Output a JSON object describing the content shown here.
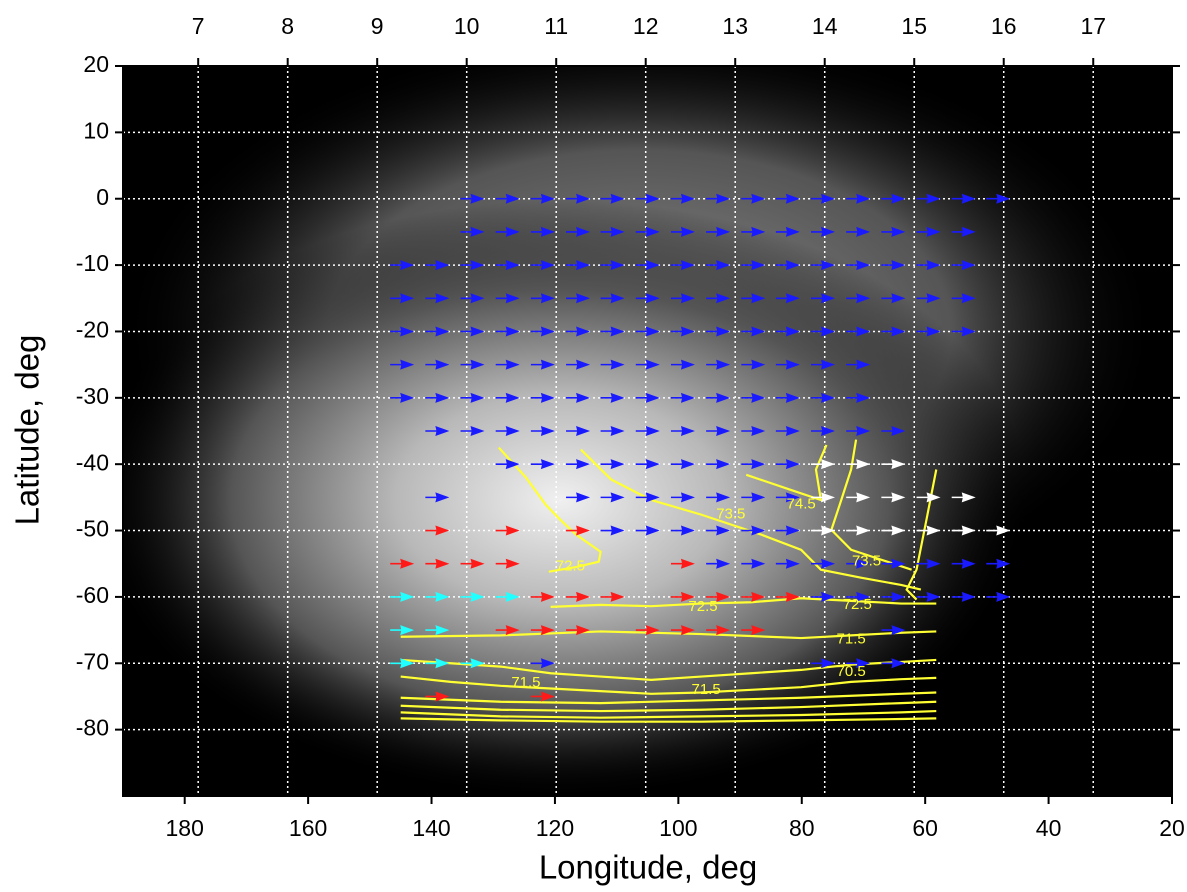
{
  "chart_data": {
    "type": "quiver",
    "xlabel": "Longitude, deg",
    "ylabel": "Latitude, deg",
    "xlim": [
      190,
      20
    ],
    "xticks": [
      180,
      160,
      140,
      120,
      100,
      80,
      60,
      40,
      20
    ],
    "x2lim": [
      6.16,
      17.88
    ],
    "x2ticks": [
      7,
      8,
      9,
      10,
      11,
      12,
      13,
      14,
      15,
      16,
      17
    ],
    "ylim": [
      -90,
      20
    ],
    "yticks": [
      20,
      10,
      0,
      -10,
      -20,
      -30,
      -40,
      -50,
      -60,
      -70,
      -80
    ],
    "grid": true,
    "series": [
      {
        "color": "#1a1aff",
        "x": [
          135.3,
          129.6,
          123.9,
          118.2,
          112.6,
          106.9,
          101.2,
          95.5,
          89.8,
          84.2,
          78.5,
          72.8,
          67.1,
          61.4,
          55.7,
          50.1,
          135.3,
          129.6,
          123.9,
          118.2,
          112.6,
          106.9,
          101.2,
          95.5,
          89.8,
          84.2,
          78.5,
          72.8,
          67.1,
          61.4,
          55.7,
          146.7,
          141,
          135.3,
          129.6,
          123.9,
          118.2,
          112.6,
          106.9,
          101.2,
          95.5,
          89.8,
          84.2,
          78.5,
          72.8,
          67.1,
          61.4,
          55.7,
          146.7,
          141,
          135.3,
          129.6,
          123.9,
          118.2,
          112.6,
          106.9,
          101.2,
          95.5,
          89.8,
          84.2,
          78.5,
          72.8,
          67.1,
          61.4,
          55.7,
          146.7,
          141,
          135.3,
          129.6,
          123.9,
          118.2,
          112.6,
          106.9,
          101.2,
          95.5,
          89.8,
          84.2,
          78.5,
          72.8,
          67.1,
          61.4,
          55.7,
          146.7,
          141,
          135.3,
          129.6,
          123.9,
          118.2,
          112.6,
          106.9,
          101.2,
          95.5,
          89.8,
          84.2,
          78.5,
          72.8,
          146.7,
          141,
          135.3,
          129.6,
          123.9,
          118.2,
          112.6,
          106.9,
          101.2,
          95.5,
          89.8,
          84.2,
          78.5,
          72.8,
          141,
          135.3,
          129.6,
          123.9,
          118.2,
          112.6,
          106.9,
          101.2,
          95.5,
          89.8,
          84.2,
          78.5,
          72.8,
          67.1,
          129.6,
          123.9,
          118.2,
          112.6,
          106.9,
          101.2,
          95.5,
          89.8,
          84.2,
          141,
          118.2,
          112.6,
          106.9,
          101.2,
          95.5,
          89.8,
          84.2,
          112.6,
          106.9,
          101.2,
          95.5,
          89.8,
          84.2,
          95.5,
          89.8,
          84.2,
          78.5,
          72.8,
          67.1,
          61.4,
          55.7,
          50.1,
          78.5,
          72.8,
          67.1,
          61.4,
          55.7,
          50.1,
          67.1,
          123.9,
          78.5,
          72.8,
          67.1
        ],
        "y": [
          0,
          0,
          0,
          0,
          0,
          0,
          0,
          0,
          0,
          0,
          0,
          0,
          0,
          0,
          0,
          0,
          -5,
          -5,
          -5,
          -5,
          -5,
          -5,
          -5,
          -5,
          -5,
          -5,
          -5,
          -5,
          -5,
          -5,
          -5,
          -10,
          -10,
          -10,
          -10,
          -10,
          -10,
          -10,
          -10,
          -10,
          -10,
          -10,
          -10,
          -10,
          -10,
          -10,
          -10,
          -10,
          -15,
          -15,
          -15,
          -15,
          -15,
          -15,
          -15,
          -15,
          -15,
          -15,
          -15,
          -15,
          -15,
          -15,
          -15,
          -15,
          -15,
          -20,
          -20,
          -20,
          -20,
          -20,
          -20,
          -20,
          -20,
          -20,
          -20,
          -20,
          -20,
          -20,
          -20,
          -20,
          -20,
          -20,
          -25,
          -25,
          -25,
          -25,
          -25,
          -25,
          -25,
          -25,
          -25,
          -25,
          -25,
          -25,
          -25,
          -25,
          -30,
          -30,
          -30,
          -30,
          -30,
          -30,
          -30,
          -30,
          -30,
          -30,
          -30,
          -30,
          -30,
          -30,
          -35,
          -35,
          -35,
          -35,
          -35,
          -35,
          -35,
          -35,
          -35,
          -35,
          -35,
          -35,
          -35,
          -35,
          -40,
          -40,
          -40,
          -40,
          -40,
          -40,
          -40,
          -40,
          -40,
          -45,
          -45,
          -45,
          -45,
          -45,
          -45,
          -45,
          -45,
          -50,
          -50,
          -50,
          -50,
          -50,
          -50,
          -55,
          -55,
          -55,
          -55,
          -55,
          -55,
          -55,
          -55,
          -55,
          -60,
          -60,
          -60,
          -60,
          -60,
          -60,
          -65,
          -70,
          -70,
          -70,
          -70
        ]
      },
      {
        "color": "#ffffff",
        "x": [
          78.5,
          72.8,
          67.1,
          78.5,
          72.8,
          67.1,
          61.4,
          55.7,
          78.5,
          72.8,
          67.1,
          61.4,
          55.7,
          50.1
        ],
        "y": [
          -40,
          -40,
          -40,
          -45,
          -45,
          -45,
          -45,
          -45,
          -50,
          -50,
          -50,
          -50,
          -50,
          -50
        ]
      },
      {
        "color": "#ff1a1a",
        "x": [
          141,
          129.6,
          118.2,
          146.7,
          141,
          135.3,
          129.6,
          101.2,
          123.9,
          118.2,
          112.6,
          101.2,
          95.5,
          89.8,
          84.2,
          129.6,
          123.9,
          118.2,
          106.9,
          101.2,
          95.5,
          89.8,
          141,
          123.9
        ],
        "y": [
          -50,
          -50,
          -50,
          -55,
          -55,
          -55,
          -55,
          -55,
          -60,
          -60,
          -60,
          -60,
          -60,
          -60,
          -60,
          -65,
          -65,
          -65,
          -65,
          -65,
          -65,
          -65,
          -75,
          -75
        ]
      },
      {
        "color": "#22ffff",
        "x": [
          146.7,
          141,
          135.3,
          129.6,
          146.7,
          141,
          146.7,
          141,
          135.3
        ],
        "y": [
          -60,
          -60,
          -60,
          -60,
          -65,
          -65,
          -70,
          -70,
          -70
        ]
      }
    ],
    "contour_color": "#ffff33",
    "contours": [
      {
        "x": [
          129.1,
          124.7,
          121.5,
          119.1,
          116.6,
          112.6,
          112.9,
          116.6,
          121.0
        ],
        "y": [
          -37.5,
          -42.0,
          -46.1,
          -48.4,
          -50.6,
          -53.2,
          -54.7,
          -55.5,
          -56.2
        ]
      },
      {
        "x": [
          89,
          81.7,
          76.9,
          77.7,
          76
        ],
        "y": [
          -41.6,
          -43.9,
          -45.4,
          -40.8,
          -37.1
        ]
      },
      {
        "x": [
          115.8,
          110.9,
          104.4,
          96.3,
          86.6,
          80.1,
          76.9,
          70.4,
          63.9,
          60.7
        ],
        "y": [
          -37.8,
          -42.3,
          -45.4,
          -47.6,
          -50.6,
          -52.9,
          -55.9,
          -57.1,
          -58.2,
          -58.9
        ]
      },
      {
        "x": [
          71.2,
          72.0,
          73.6,
          75.2,
          72.0,
          67.1,
          62.2
        ],
        "y": [
          -36.3,
          -40.8,
          -45.4,
          -49.9,
          -52.9,
          -54.4,
          -55.9
        ]
      },
      {
        "x": [
          58.2,
          59.8,
          61.4,
          63.0,
          61.4
        ],
        "y": [
          -40.8,
          -48.4,
          -55.9,
          -58.9,
          -60.4
        ]
      },
      {
        "x": [
          120.7,
          112.6,
          104.4,
          96.3,
          88.2,
          80.1,
          72,
          63.9,
          58.2
        ],
        "y": [
          -61.5,
          -61.2,
          -61.4,
          -61,
          -60.8,
          -60.2,
          -60.6,
          -61,
          -61
        ]
      },
      {
        "x": [
          145,
          128.8,
          112.6,
          96.3,
          80.1,
          72,
          63.9,
          58.2
        ],
        "y": [
          -66,
          -65.8,
          -65.2,
          -65.6,
          -66.2,
          -65.8,
          -65.4,
          -65.2
        ]
      },
      {
        "x": [
          145,
          136.9,
          128.8,
          120.7,
          112.6,
          104.4,
          96.3,
          88.2,
          80.1,
          72,
          63.9,
          58.2
        ],
        "y": [
          -69.5,
          -70,
          -70.5,
          -71.5,
          -72,
          -72.5,
          -72,
          -71.5,
          -71,
          -70.2,
          -69.8,
          -69.5
        ]
      },
      {
        "x": [
          145,
          136.9,
          128.8,
          120.7,
          112.6,
          104.4,
          96.3,
          88.2,
          80.1,
          72,
          63.9,
          58.2
        ],
        "y": [
          -72,
          -72.8,
          -73.4,
          -73.8,
          -74.2,
          -74.6,
          -74.4,
          -74,
          -73.6,
          -72.8,
          -72.4,
          -72.2
        ]
      },
      {
        "x": [
          145,
          128.8,
          112.6,
          96.3,
          80.1,
          63.9,
          58.2
        ],
        "y": [
          -75.2,
          -75.8,
          -76,
          -75.6,
          -75.2,
          -74.6,
          -74.4
        ]
      },
      {
        "x": [
          145,
          128.8,
          112.6,
          96.3,
          80.1,
          63.9,
          58.2
        ],
        "y": [
          -76.4,
          -77,
          -77.2,
          -77,
          -76.6,
          -76,
          -75.8
        ]
      },
      {
        "x": [
          145,
          128.8,
          112.6,
          96.3,
          80.1,
          63.9,
          58.2
        ],
        "y": [
          -77.4,
          -78,
          -78.2,
          -78,
          -77.8,
          -77.4,
          -77.2
        ]
      },
      {
        "x": [
          145,
          128.8,
          112.6,
          96.3,
          80.1,
          63.9,
          58.2
        ],
        "y": [
          -78.3,
          -78.6,
          -78.8,
          -78.8,
          -78.6,
          -78.4,
          -78.3
        ]
      }
    ],
    "annotations": [
      {
        "text": "74.5",
        "x": 80.1,
        "y": -46.1
      },
      {
        "text": "73.5",
        "x": 91.5,
        "y": -47.6
      },
      {
        "text": "73.5",
        "x": 69.5,
        "y": -54.7
      },
      {
        "text": "72.5",
        "x": 117.5,
        "y": -55.4
      },
      {
        "text": "72.5",
        "x": 96,
        "y": -61.5
      },
      {
        "text": "72.5",
        "x": 71,
        "y": -61.2
      },
      {
        "text": "71.5",
        "x": 72,
        "y": -66.4
      },
      {
        "text": "71.5",
        "x": 124.7,
        "y": -73
      },
      {
        "text": "71.5",
        "x": 95.5,
        "y": -74
      },
      {
        "text": "70.5",
        "x": 72,
        "y": -71.3
      }
    ]
  }
}
